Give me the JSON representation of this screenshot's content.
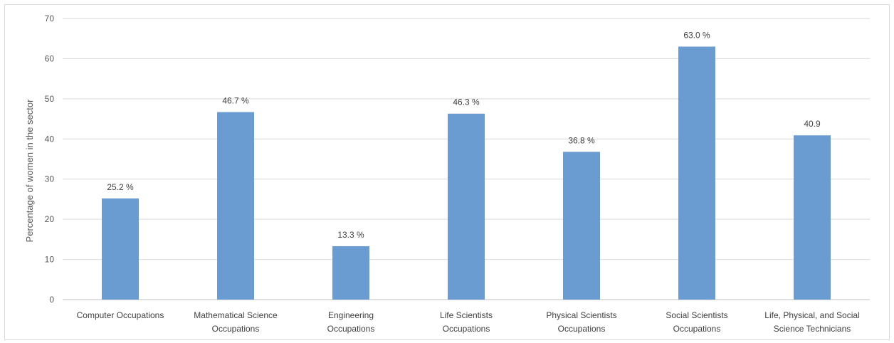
{
  "chart_data": {
    "type": "bar",
    "title": "",
    "xlabel": "",
    "ylabel": "Percentage of women in the sector",
    "ylim": [
      0,
      70
    ],
    "yticks": [
      0,
      10,
      20,
      30,
      40,
      50,
      60,
      70
    ],
    "grid": true,
    "legend": "none",
    "bar_color": "#6a9bd1",
    "categories": [
      [
        "Computer Occupations"
      ],
      [
        "Mathematical Science",
        "Occupations"
      ],
      [
        "Engineering",
        "Occupations"
      ],
      [
        "Life Scientists",
        "Occupations"
      ],
      [
        "Physical Scientists",
        "Occupations"
      ],
      [
        "Social Scientists",
        "Occupations"
      ],
      [
        "Life, Physical, and Social",
        "Science Technicians"
      ]
    ],
    "values": [
      25.2,
      46.7,
      13.3,
      46.3,
      36.8,
      63.0,
      40.9
    ],
    "data_labels": [
      "25.2 %",
      "46.7 %",
      "13.3 %",
      "46.3 %",
      "36.8 %",
      "63.0 %",
      "40.9"
    ]
  }
}
